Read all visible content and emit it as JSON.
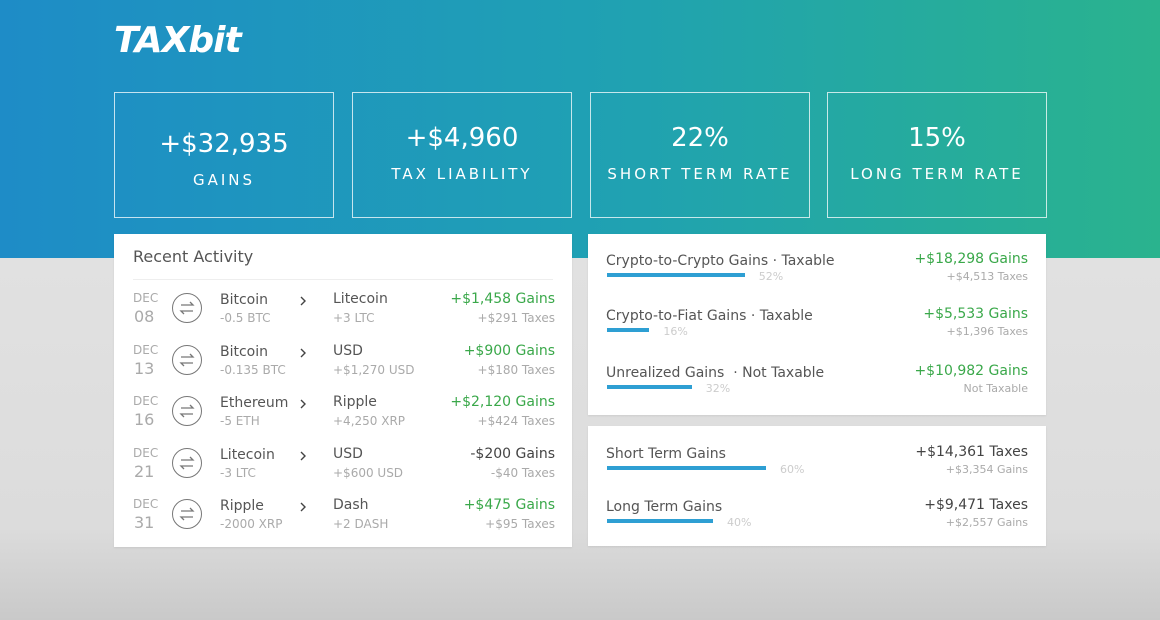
{
  "header": {
    "brand": "TAXbit"
  },
  "stats": [
    {
      "value": "+$32,935",
      "label": "GAINS"
    },
    {
      "value": "+$4,960",
      "label": "TAX LIABILITY"
    },
    {
      "value": "22%",
      "label": "SHORT TERM RATE"
    },
    {
      "value": "15%",
      "label": "LONG TERM RATE"
    }
  ],
  "activity": {
    "title": "Recent Activity",
    "rows": [
      {
        "month": "DEC",
        "day": "08",
        "from": "Bitcoin",
        "from_amount": "-0.5 BTC",
        "to": "Litecoin",
        "to_amount": "+3 LTC",
        "gain": "+$1,458 Gains",
        "tax": "+$291 Taxes",
        "gain_color": "#3aa84a"
      },
      {
        "month": "DEC",
        "day": "13",
        "from": "Bitcoin",
        "from_amount": "-0.135 BTC",
        "to": "USD",
        "to_amount": "+$1,270 USD",
        "gain": "+$900 Gains",
        "tax": "+$180 Taxes",
        "gain_color": "#3aa84a"
      },
      {
        "month": "DEC",
        "day": "16",
        "from": "Ethereum",
        "from_amount": "-5 ETH",
        "to": "Ripple",
        "to_amount": "+4,250 XRP",
        "gain": "+$2,120 Gains",
        "tax": "+$424 Taxes",
        "gain_color": "#3aa84a"
      },
      {
        "month": "DEC",
        "day": "21",
        "from": "Litecoin",
        "from_amount": "-3 LTC",
        "to": "USD",
        "to_amount": "+$600 USD",
        "gain": "-$200 Gains",
        "tax": "-$40 Taxes",
        "gain_color": "#444444"
      },
      {
        "month": "DEC",
        "day": "31",
        "from": "Ripple",
        "from_amount": "-2000 XRP",
        "to": "Dash",
        "to_amount": "+2 DASH",
        "gain": "+$475 Gains",
        "tax": "+$95 Taxes",
        "gain_color": "#3aa84a"
      }
    ]
  },
  "breakdown": [
    {
      "name": "Crypto-to-Crypto Gains · Taxable",
      "share": {
        "value": 52,
        "label": "52%"
      },
      "amount": "+$18,298 Gains",
      "sub": "+$4,513 Taxes",
      "amount_color": "#3aa84a"
    },
    {
      "name": "Crypto-to-Fiat Gains · Taxable",
      "share": {
        "value": 16,
        "label": "16%"
      },
      "amount": "+$5,533 Gains",
      "sub": "+$1,396 Taxes",
      "amount_color": "#3aa84a"
    },
    {
      "name": "Unrealized Gains  · Not Taxable",
      "share": {
        "value": 32,
        "label": "32%"
      },
      "amount": "+$10,982 Gains",
      "sub": "Not Taxable",
      "amount_color": "#3aa84a"
    }
  ],
  "terms": [
    {
      "name": "Short Term Gains",
      "share": {
        "value": 60,
        "label": "60%"
      },
      "amount": "+$14,361 Taxes",
      "sub": "+$3,354 Gains",
      "amount_color": "#444444"
    },
    {
      "name": "Long Term Gains",
      "share": {
        "value": 40,
        "label": "40%"
      },
      "amount": "+$9,471 Taxes",
      "sub": "+$2,557 Gains",
      "amount_color": "#444444"
    }
  ]
}
